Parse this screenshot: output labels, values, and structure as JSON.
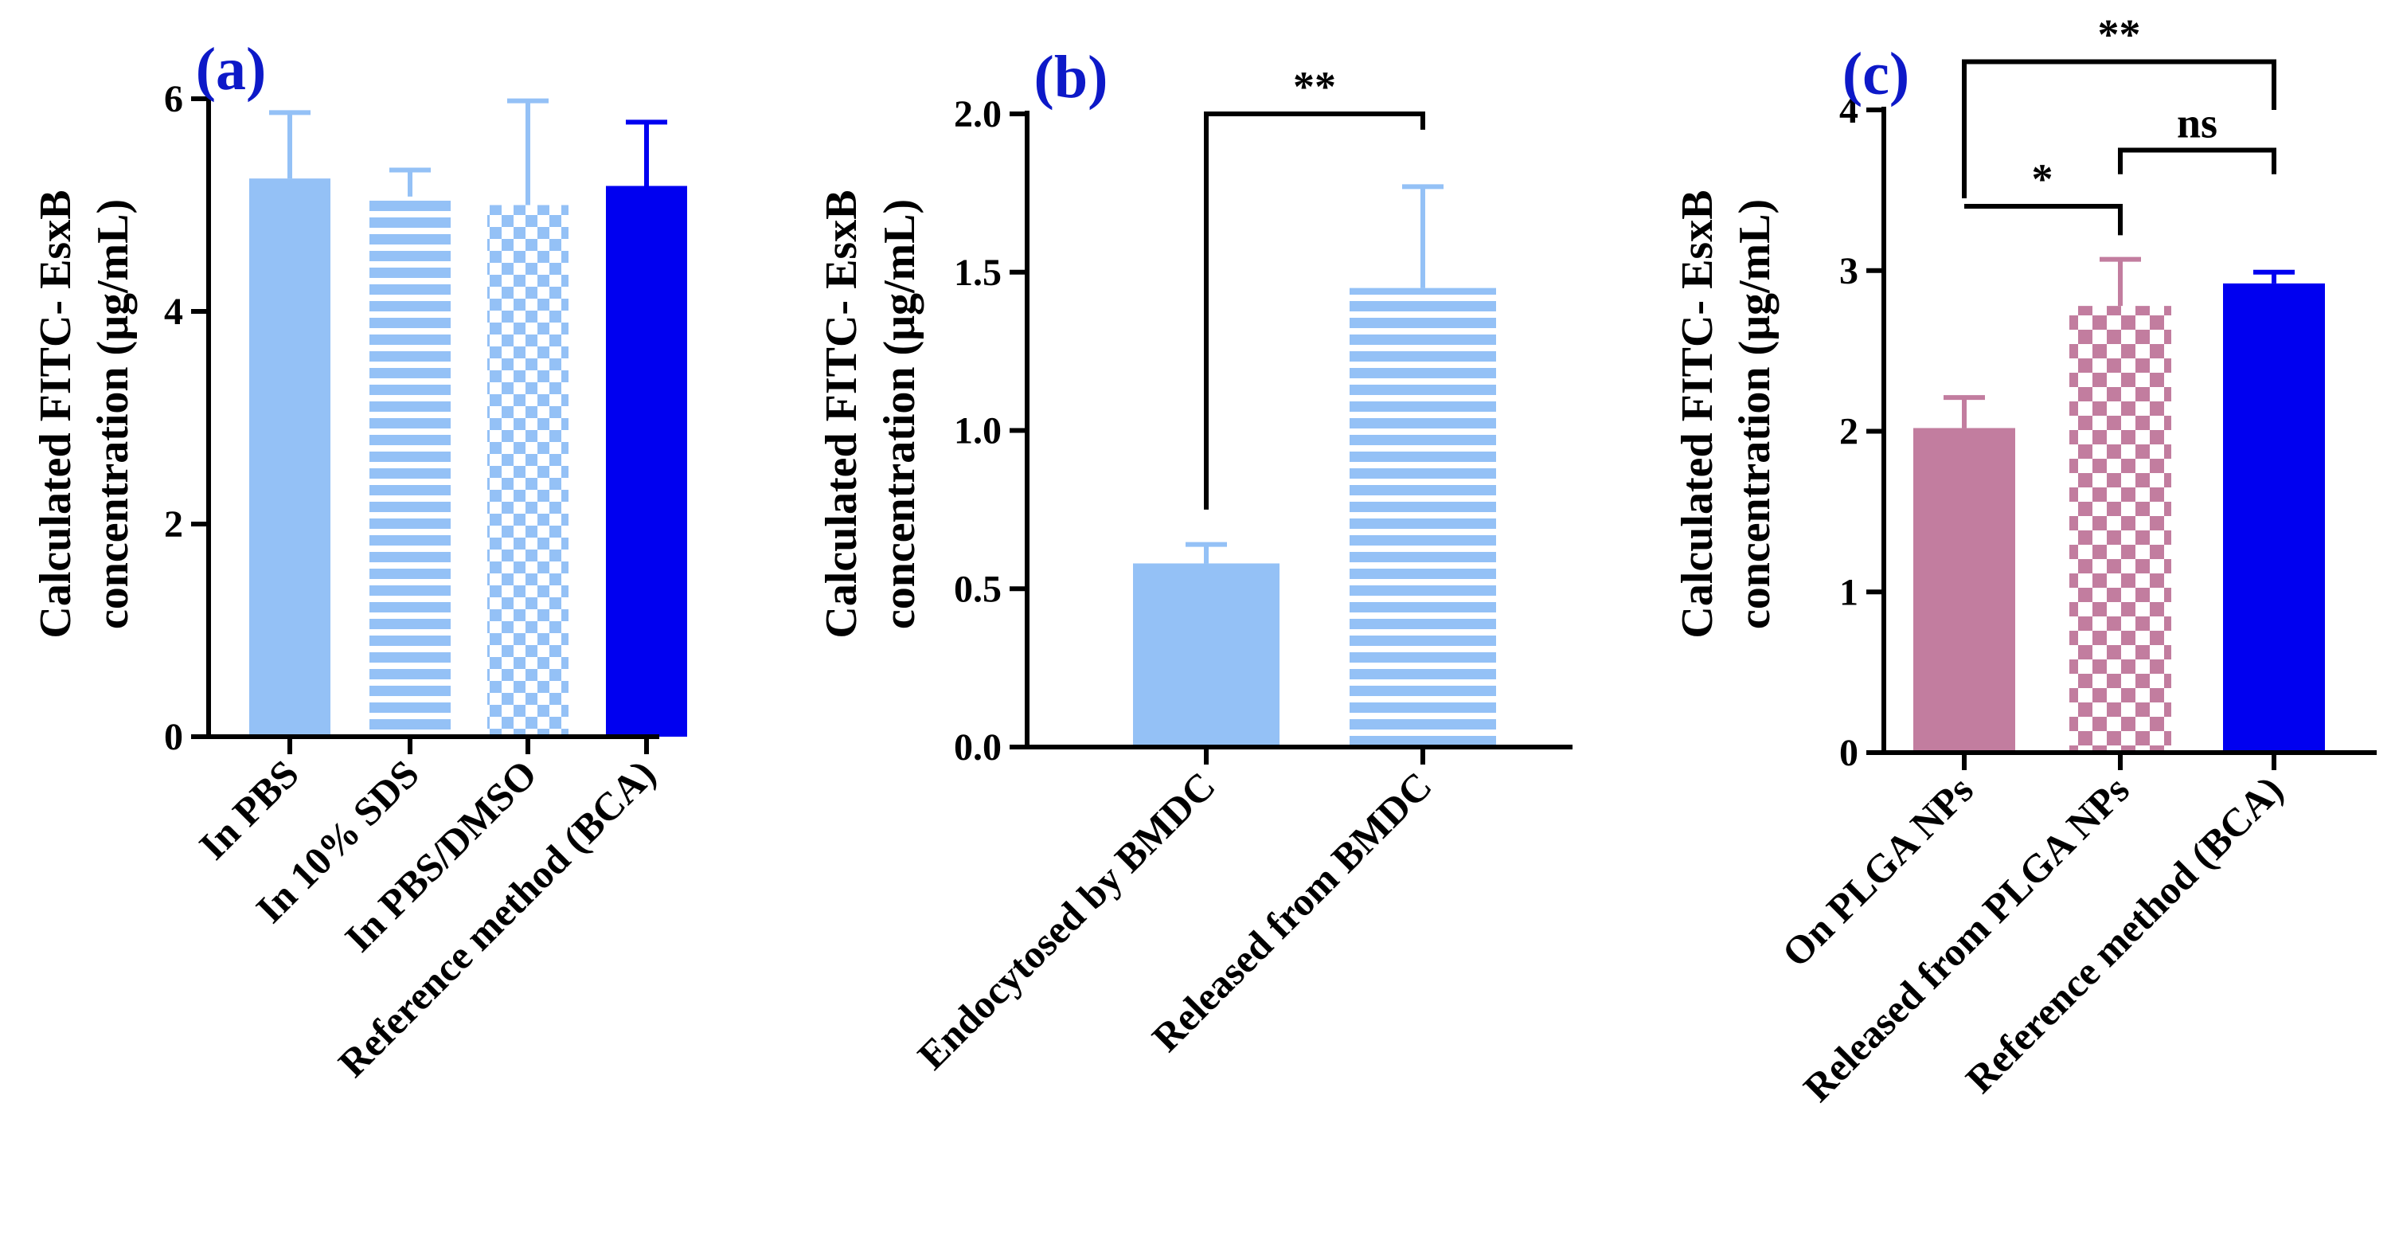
{
  "colors": {
    "light_blue": "#94C1F6",
    "blue": "#0000F0",
    "mauve": "#C27D9F",
    "panel_label": "#0D19C8",
    "axis": "#000000",
    "background": "#FFFFFF"
  },
  "chart_data": [
    {
      "type": "bar",
      "panel_label": "(a)",
      "ylabel": [
        "Calculated FITC- EsxB",
        "concentration (μg/mL)"
      ],
      "ylim": [
        0,
        6
      ],
      "yticks": [
        0,
        2,
        4,
        6
      ],
      "ytick_labels": [
        "0",
        "2",
        "4",
        "6"
      ],
      "categories": [
        "In PBS",
        "In 10% SDS",
        "In PBS/DMSO",
        "Reference method (BCA)"
      ],
      "values": [
        5.25,
        5.08,
        5.0,
        5.18
      ],
      "errors": [
        0.62,
        0.25,
        0.98,
        0.6
      ],
      "patterns": [
        "solid",
        "stripes",
        "checker",
        "solid"
      ],
      "fills": [
        "#94C1F6",
        "#94C1F6",
        "#94C1F6",
        "#0000F0"
      ],
      "grid": false,
      "significance": []
    },
    {
      "type": "bar",
      "panel_label": "(b)",
      "ylabel": [
        "Calculated FITC- EsxB",
        "concentration (μg/mL)"
      ],
      "ylim": [
        0,
        2.0
      ],
      "yticks": [
        0,
        0.5,
        1.0,
        1.5,
        2.0
      ],
      "ytick_labels": [
        "0.0",
        "0.5",
        "1.0",
        "1.5",
        "2.0"
      ],
      "categories": [
        "Endocytosed by BMDC",
        "Released from BMDC"
      ],
      "values": [
        0.58,
        1.45
      ],
      "errors": [
        0.06,
        0.32
      ],
      "patterns": [
        "solid",
        "stripes"
      ],
      "fills": [
        "#94C1F6",
        "#94C1F6"
      ],
      "grid": false,
      "significance": [
        {
          "from": 0,
          "to": 1,
          "label": "**",
          "y": 2.0,
          "drop_from": 0.75,
          "drop_to": 1.95
        }
      ]
    },
    {
      "type": "bar",
      "panel_label": "(c)",
      "ylabel": [
        "Calculated FITC- EsxB",
        "concentration (μg/mL)"
      ],
      "ylim": [
        0,
        4
      ],
      "yticks": [
        0,
        1,
        2,
        3,
        4
      ],
      "ytick_labels": [
        "0",
        "1",
        "2",
        "3",
        "4"
      ],
      "categories": [
        "On PLGA NPs",
        "Released from PLGA NPs",
        "Reference method (BCA)"
      ],
      "values": [
        2.02,
        2.78,
        2.92
      ],
      "errors": [
        0.19,
        0.29,
        0.07
      ],
      "patterns": [
        "solid",
        "checker",
        "solid"
      ],
      "fills": [
        "#C27D9F",
        "#C27D9F",
        "#0000F0"
      ],
      "grid": false,
      "significance": [
        {
          "from": 0,
          "to": 1,
          "label": "*",
          "y": 3.4,
          "drop_from": 3.4,
          "drop_to": 3.22
        },
        {
          "from": 1,
          "to": 2,
          "label": "ns",
          "y": 3.75,
          "drop_from": 3.6,
          "drop_to": 3.6
        },
        {
          "from": 0,
          "to": 2,
          "label": "**",
          "y": 4.3,
          "drop_from": 3.45,
          "drop_to": 4.0
        }
      ]
    }
  ]
}
